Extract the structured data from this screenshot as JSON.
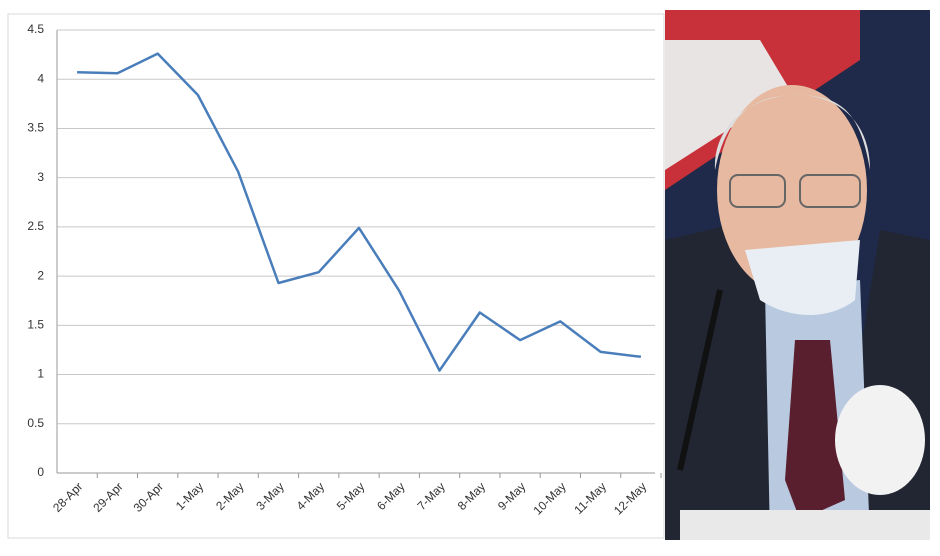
{
  "chart_data": {
    "type": "line",
    "categories": [
      "28-Apr",
      "29-Apr",
      "30-Apr",
      "1-May",
      "2-May",
      "3-May",
      "4-May",
      "5-May",
      "6-May",
      "7-May",
      "8-May",
      "9-May",
      "10-May",
      "11-May",
      "12-May"
    ],
    "values": [
      4.07,
      4.06,
      4.26,
      3.84,
      3.06,
      1.93,
      2.04,
      2.49,
      1.85,
      1.04,
      1.63,
      1.35,
      1.54,
      1.23,
      1.18
    ],
    "color": "#4a7ebb",
    "ylim": [
      0,
      4.5
    ],
    "yticks": [
      0,
      0.5,
      1,
      1.5,
      2,
      2.5,
      3,
      3.5,
      4,
      4.5
    ],
    "grid": true
  }
}
